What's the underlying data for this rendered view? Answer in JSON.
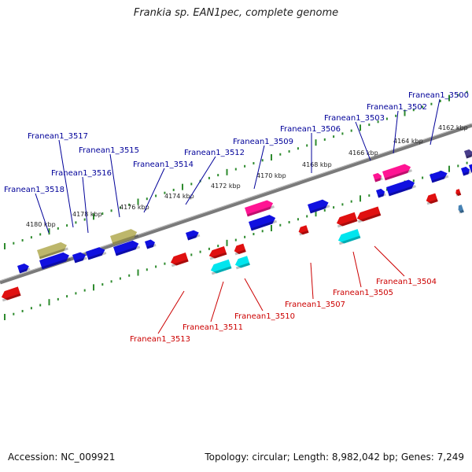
{
  "title": "Frankia sp. EAN1pec, complete genome",
  "footer": {
    "accession": "Accession: NC_009921",
    "summary": "Topology: circular; Length: 8,982,042 bp; Genes: 7,249"
  },
  "colors": {
    "backbone": "#7a7a7a",
    "tick": "#2e8b2e",
    "forward_gene": "#1010e0",
    "reverse_gene": "#e01010",
    "rna": "#ff1493",
    "cyan": "#00e5ee",
    "khaki": "#bdb76b",
    "forward_label": "#000099",
    "reverse_label": "#cc0000"
  },
  "scale_labels": [
    "4180 kbp",
    "4178 kbp",
    "4176 kbp",
    "4174 kbp",
    "4172 kbp",
    "4170 kbp",
    "4168 kbp",
    "4166 kbp",
    "4164 kbp",
    "4162 kbp"
  ],
  "forward_labels": [
    "Franean1_3518",
    "Franean1_3517",
    "Franean1_3516",
    "Franean1_3515",
    "Franean1_3514",
    "Franean1_3512",
    "Franean1_3509",
    "Franean1_3506",
    "Franean1_3503",
    "Franean1_3502",
    "Franean1_3500"
  ],
  "reverse_labels": [
    "Franean1_3513",
    "Franean1_3511",
    "Franean1_3510",
    "Franean1_3507",
    "Franean1_3505",
    "Franean1_3504"
  ]
}
